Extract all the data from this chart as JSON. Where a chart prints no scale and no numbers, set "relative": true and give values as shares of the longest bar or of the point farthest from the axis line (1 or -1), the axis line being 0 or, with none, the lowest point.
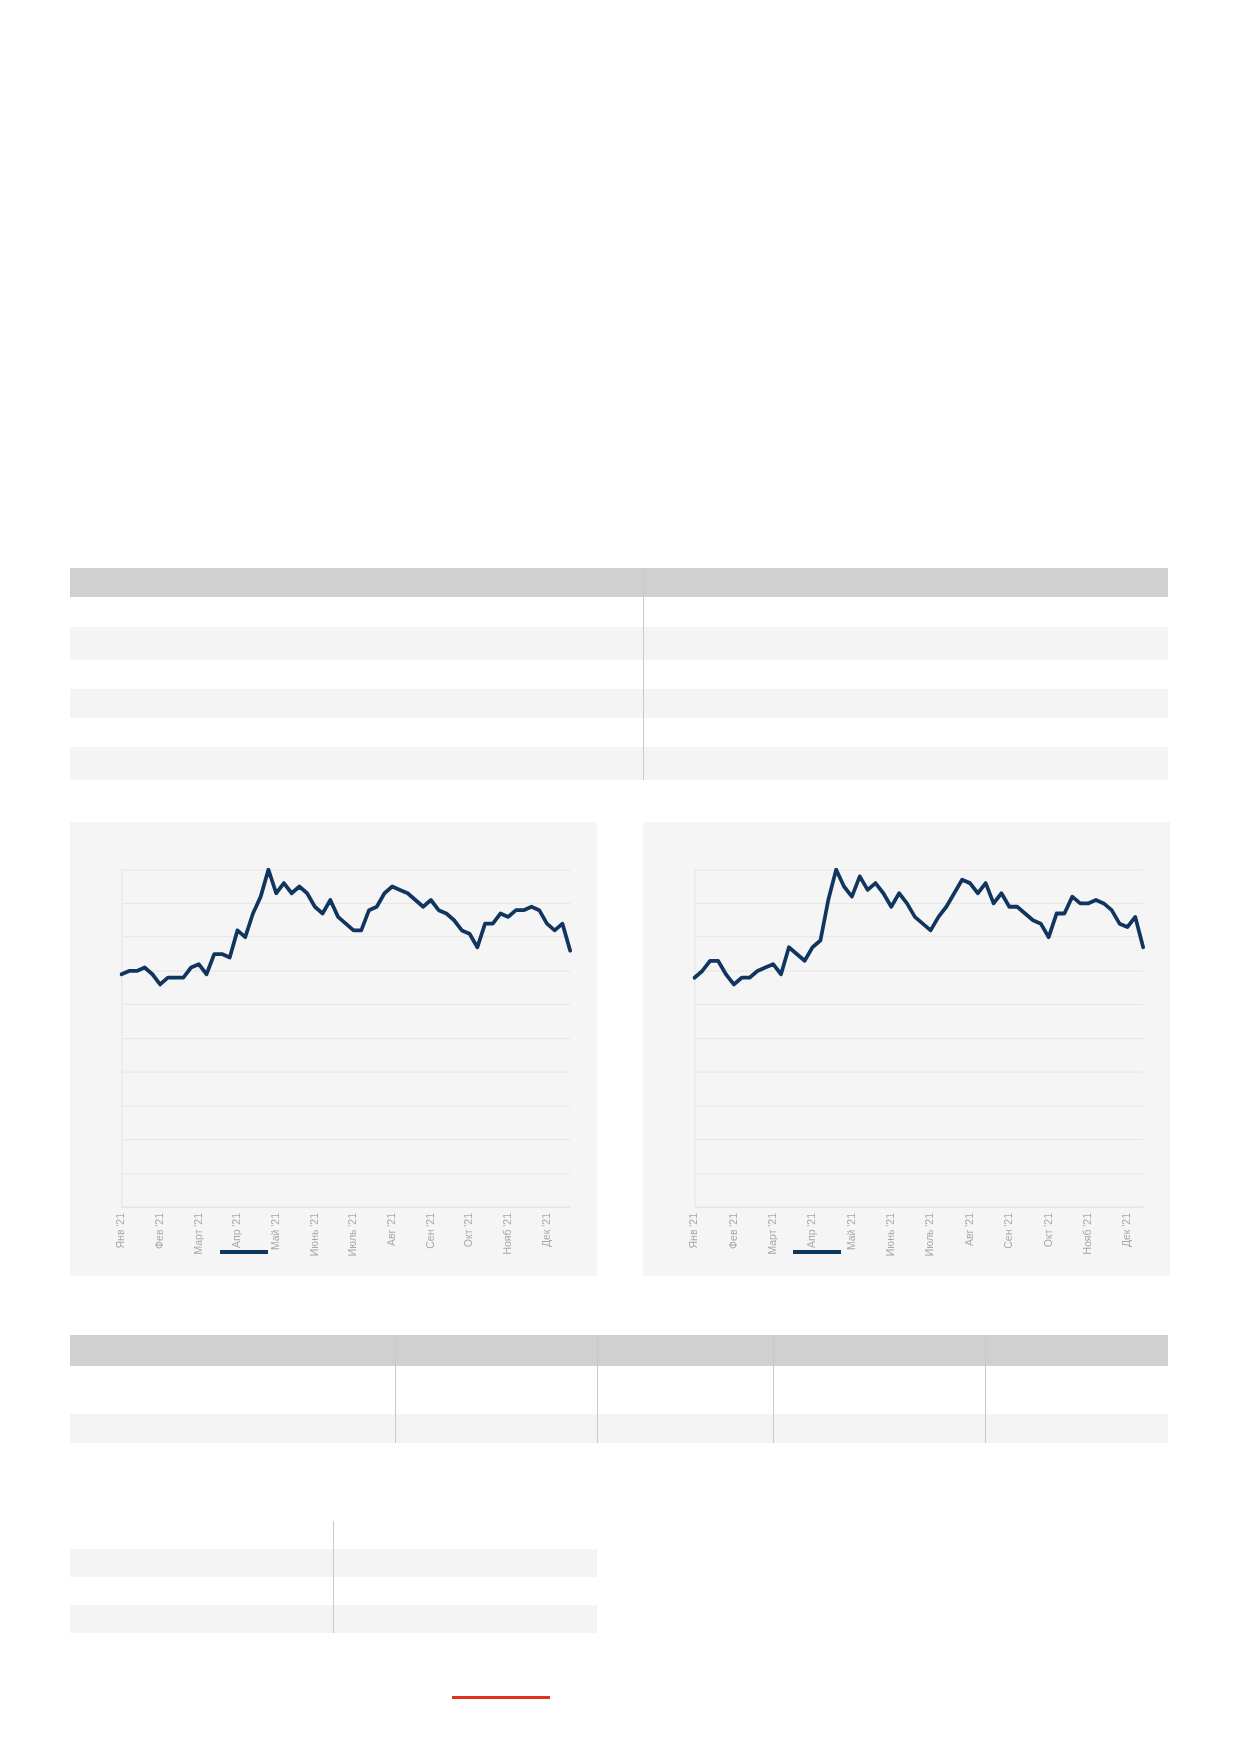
{
  "chart_data": [
    {
      "type": "line",
      "relative": true,
      "grid": "y",
      "categories": [
        "Янв '21",
        null,
        null,
        null,
        null,
        "Фев '21",
        null,
        null,
        null,
        null,
        "Март '21",
        null,
        null,
        null,
        null,
        "Апр '21",
        null,
        null,
        null,
        null,
        "Май '21",
        null,
        null,
        null,
        null,
        "Июнь '21",
        null,
        null,
        null,
        null,
        "Июль '21",
        null,
        null,
        null,
        null,
        "Авг '21",
        null,
        null,
        null,
        null,
        "Сен '21",
        null,
        null,
        null,
        null,
        "Окт '21",
        null,
        null,
        null,
        null,
        "Нояб '21",
        null,
        null,
        null,
        null,
        "Дек '21",
        null,
        null,
        null
      ],
      "series": [
        {
          "color": "#10355e",
          "values": [
            0.69,
            0.7,
            0.7,
            0.71,
            0.69,
            0.66,
            0.68,
            0.68,
            0.68,
            0.71,
            0.72,
            0.69,
            0.75,
            0.75,
            0.74,
            0.82,
            0.8,
            0.87,
            0.92,
            1.0,
            0.93,
            0.96,
            0.93,
            0.95,
            0.93,
            0.89,
            0.87,
            0.91,
            0.86,
            0.84,
            0.82,
            0.82,
            0.88,
            0.89,
            0.93,
            0.95,
            0.94,
            0.93,
            0.91,
            0.89,
            0.91,
            0.88,
            0.87,
            0.85,
            0.82,
            0.81,
            0.77,
            0.84,
            0.84,
            0.87,
            0.86,
            0.88,
            0.88,
            0.89,
            0.88,
            0.84,
            0.82,
            0.84,
            0.76
          ]
        }
      ]
    },
    {
      "type": "line",
      "relative": true,
      "grid": "y",
      "categories": [
        "Янв '21",
        null,
        null,
        null,
        null,
        "Фев '21",
        null,
        null,
        null,
        null,
        "Март '21",
        null,
        null,
        null,
        null,
        "Апр '21",
        null,
        null,
        null,
        null,
        "Май '21",
        null,
        null,
        null,
        null,
        "Июнь '21",
        null,
        null,
        null,
        null,
        "Июль '21",
        null,
        null,
        null,
        null,
        "Авг '21",
        null,
        null,
        null,
        null,
        "Сен '21",
        null,
        null,
        null,
        null,
        "Окт '21",
        null,
        null,
        null,
        null,
        "Нояб '21",
        null,
        null,
        null,
        null,
        "Дек '21",
        null,
        null
      ],
      "series": [
        {
          "color": "#10355e",
          "values": [
            0.68,
            0.7,
            0.73,
            0.73,
            0.69,
            0.66,
            0.68,
            0.68,
            0.7,
            0.71,
            0.72,
            0.69,
            0.77,
            0.75,
            0.73,
            0.77,
            0.79,
            0.91,
            1.0,
            0.95,
            0.92,
            0.98,
            0.94,
            0.96,
            0.93,
            0.89,
            0.93,
            0.9,
            0.86,
            0.84,
            0.82,
            0.86,
            0.89,
            0.93,
            0.97,
            0.96,
            0.93,
            0.96,
            0.9,
            0.93,
            0.89,
            0.89,
            0.87,
            0.85,
            0.84,
            0.8,
            0.87,
            0.87,
            0.92,
            0.9,
            0.9,
            0.91,
            0.9,
            0.88,
            0.84,
            0.83,
            0.86,
            0.77
          ]
        }
      ]
    }
  ]
}
